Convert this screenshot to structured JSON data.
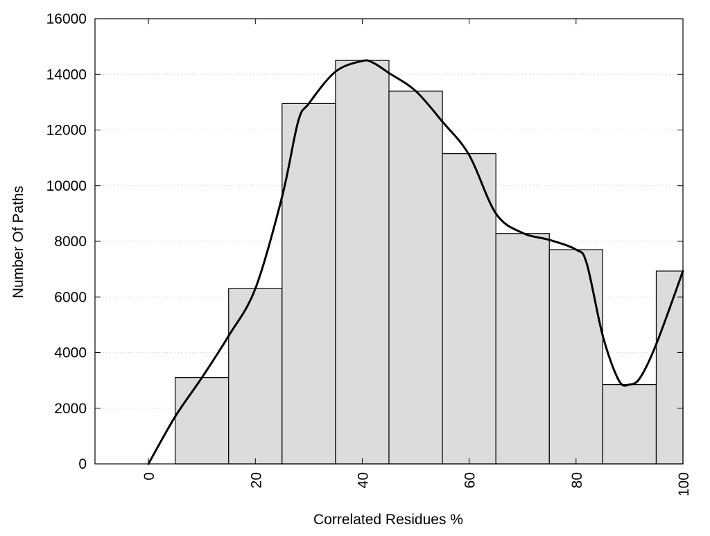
{
  "chart_data": {
    "type": "bar",
    "title": "",
    "xlabel": "Correlated Residues %",
    "ylabel": "Number Of Paths",
    "xlim": [
      -10,
      100
    ],
    "ylim": [
      0,
      16000
    ],
    "grid": true,
    "x_ticks": [
      0,
      20,
      40,
      60,
      80,
      100
    ],
    "y_ticks": [
      0,
      2000,
      4000,
      6000,
      8000,
      10000,
      12000,
      14000,
      16000
    ],
    "bins": [
      {
        "x_start": 5,
        "x_end": 15,
        "value": 3100
      },
      {
        "x_start": 15,
        "x_end": 25,
        "value": 6300
      },
      {
        "x_start": 25,
        "x_end": 35,
        "value": 12950
      },
      {
        "x_start": 35,
        "x_end": 45,
        "value": 14500
      },
      {
        "x_start": 45,
        "x_end": 55,
        "value": 13400
      },
      {
        "x_start": 55,
        "x_end": 65,
        "value": 11150
      },
      {
        "x_start": 65,
        "x_end": 75,
        "value": 8280
      },
      {
        "x_start": 75,
        "x_end": 85,
        "value": 7700
      },
      {
        "x_start": 85,
        "x_end": 95,
        "value": 2850
      },
      {
        "x_start": 95,
        "x_end": 100,
        "value": 6930
      }
    ],
    "smooth_curve": {
      "x": [
        0,
        5,
        10,
        15,
        20,
        25,
        28,
        30,
        35,
        40,
        42,
        45,
        50,
        55,
        60,
        65,
        70,
        75,
        80,
        82,
        85,
        88,
        90,
        92,
        95,
        100
      ],
      "y": [
        0,
        1700,
        3100,
        4600,
        6300,
        9600,
        12300,
        12950,
        14100,
        14480,
        14420,
        14050,
        13400,
        12300,
        11100,
        9000,
        8300,
        8050,
        7700,
        7200,
        4600,
        3000,
        2850,
        3100,
        4300,
        6930
      ]
    },
    "colors": {
      "bar_fill": "#dcdcdc",
      "bar_stroke": "#000000",
      "curve": "#000000",
      "grid": "#cccccc",
      "frame": "#000000"
    }
  }
}
